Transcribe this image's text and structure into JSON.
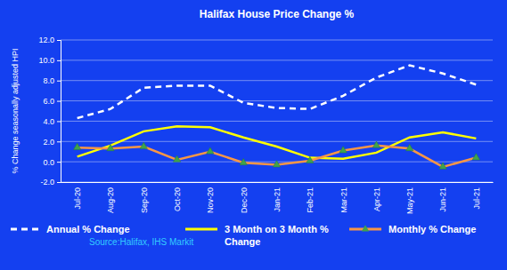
{
  "chart_data": {
    "type": "line",
    "title": "Halifax House Price Change %",
    "y_label": "% Change seasonally adjusted HPI",
    "source": "Source:Halifax, IHS Markit",
    "categories": [
      "Jul-20",
      "Aug-20",
      "Sep-20",
      "Oct-20",
      "Nov-20",
      "Dec-20",
      "Jan-21",
      "Feb-21",
      "Mar-21",
      "Apr-21",
      "May-21",
      "Jun-21",
      "Jul-21"
    ],
    "series": [
      {
        "name": "Annual % Change",
        "color": "#ffffff",
        "line_style": "dashed",
        "values": [
          4.3,
          5.2,
          7.3,
          7.5,
          7.5,
          5.8,
          5.3,
          5.2,
          6.5,
          8.3,
          9.5,
          8.7,
          7.6
        ]
      },
      {
        "name": "3 Month on 3 Month % Change",
        "color": "#ffff00",
        "line_style": "solid",
        "values": [
          0.5,
          1.6,
          3.0,
          3.5,
          3.4,
          2.4,
          1.5,
          0.4,
          0.3,
          0.9,
          2.4,
          2.9,
          2.3
        ]
      },
      {
        "name": "Monthly % Change",
        "color": "#f79646",
        "line_style": "solid",
        "marker": "triangle",
        "values": [
          1.4,
          1.3,
          1.5,
          0.2,
          1.0,
          -0.1,
          -0.3,
          0.1,
          1.1,
          1.6,
          1.3,
          -0.5,
          0.4
        ]
      }
    ],
    "ylim": [
      -2,
      12
    ],
    "yticks": [
      {
        "value": -2,
        "label": "-2.0"
      },
      {
        "value": 0,
        "label": "0.0"
      },
      {
        "value": 2,
        "label": "2.0"
      },
      {
        "value": 4,
        "label": "4.0"
      },
      {
        "value": 6,
        "label": "6.0"
      },
      {
        "value": 8,
        "label": "8.0"
      },
      {
        "value": 10,
        "label": "10.0"
      },
      {
        "value": 12,
        "label": "12.0"
      }
    ],
    "grid": true,
    "legend": "bottom"
  }
}
